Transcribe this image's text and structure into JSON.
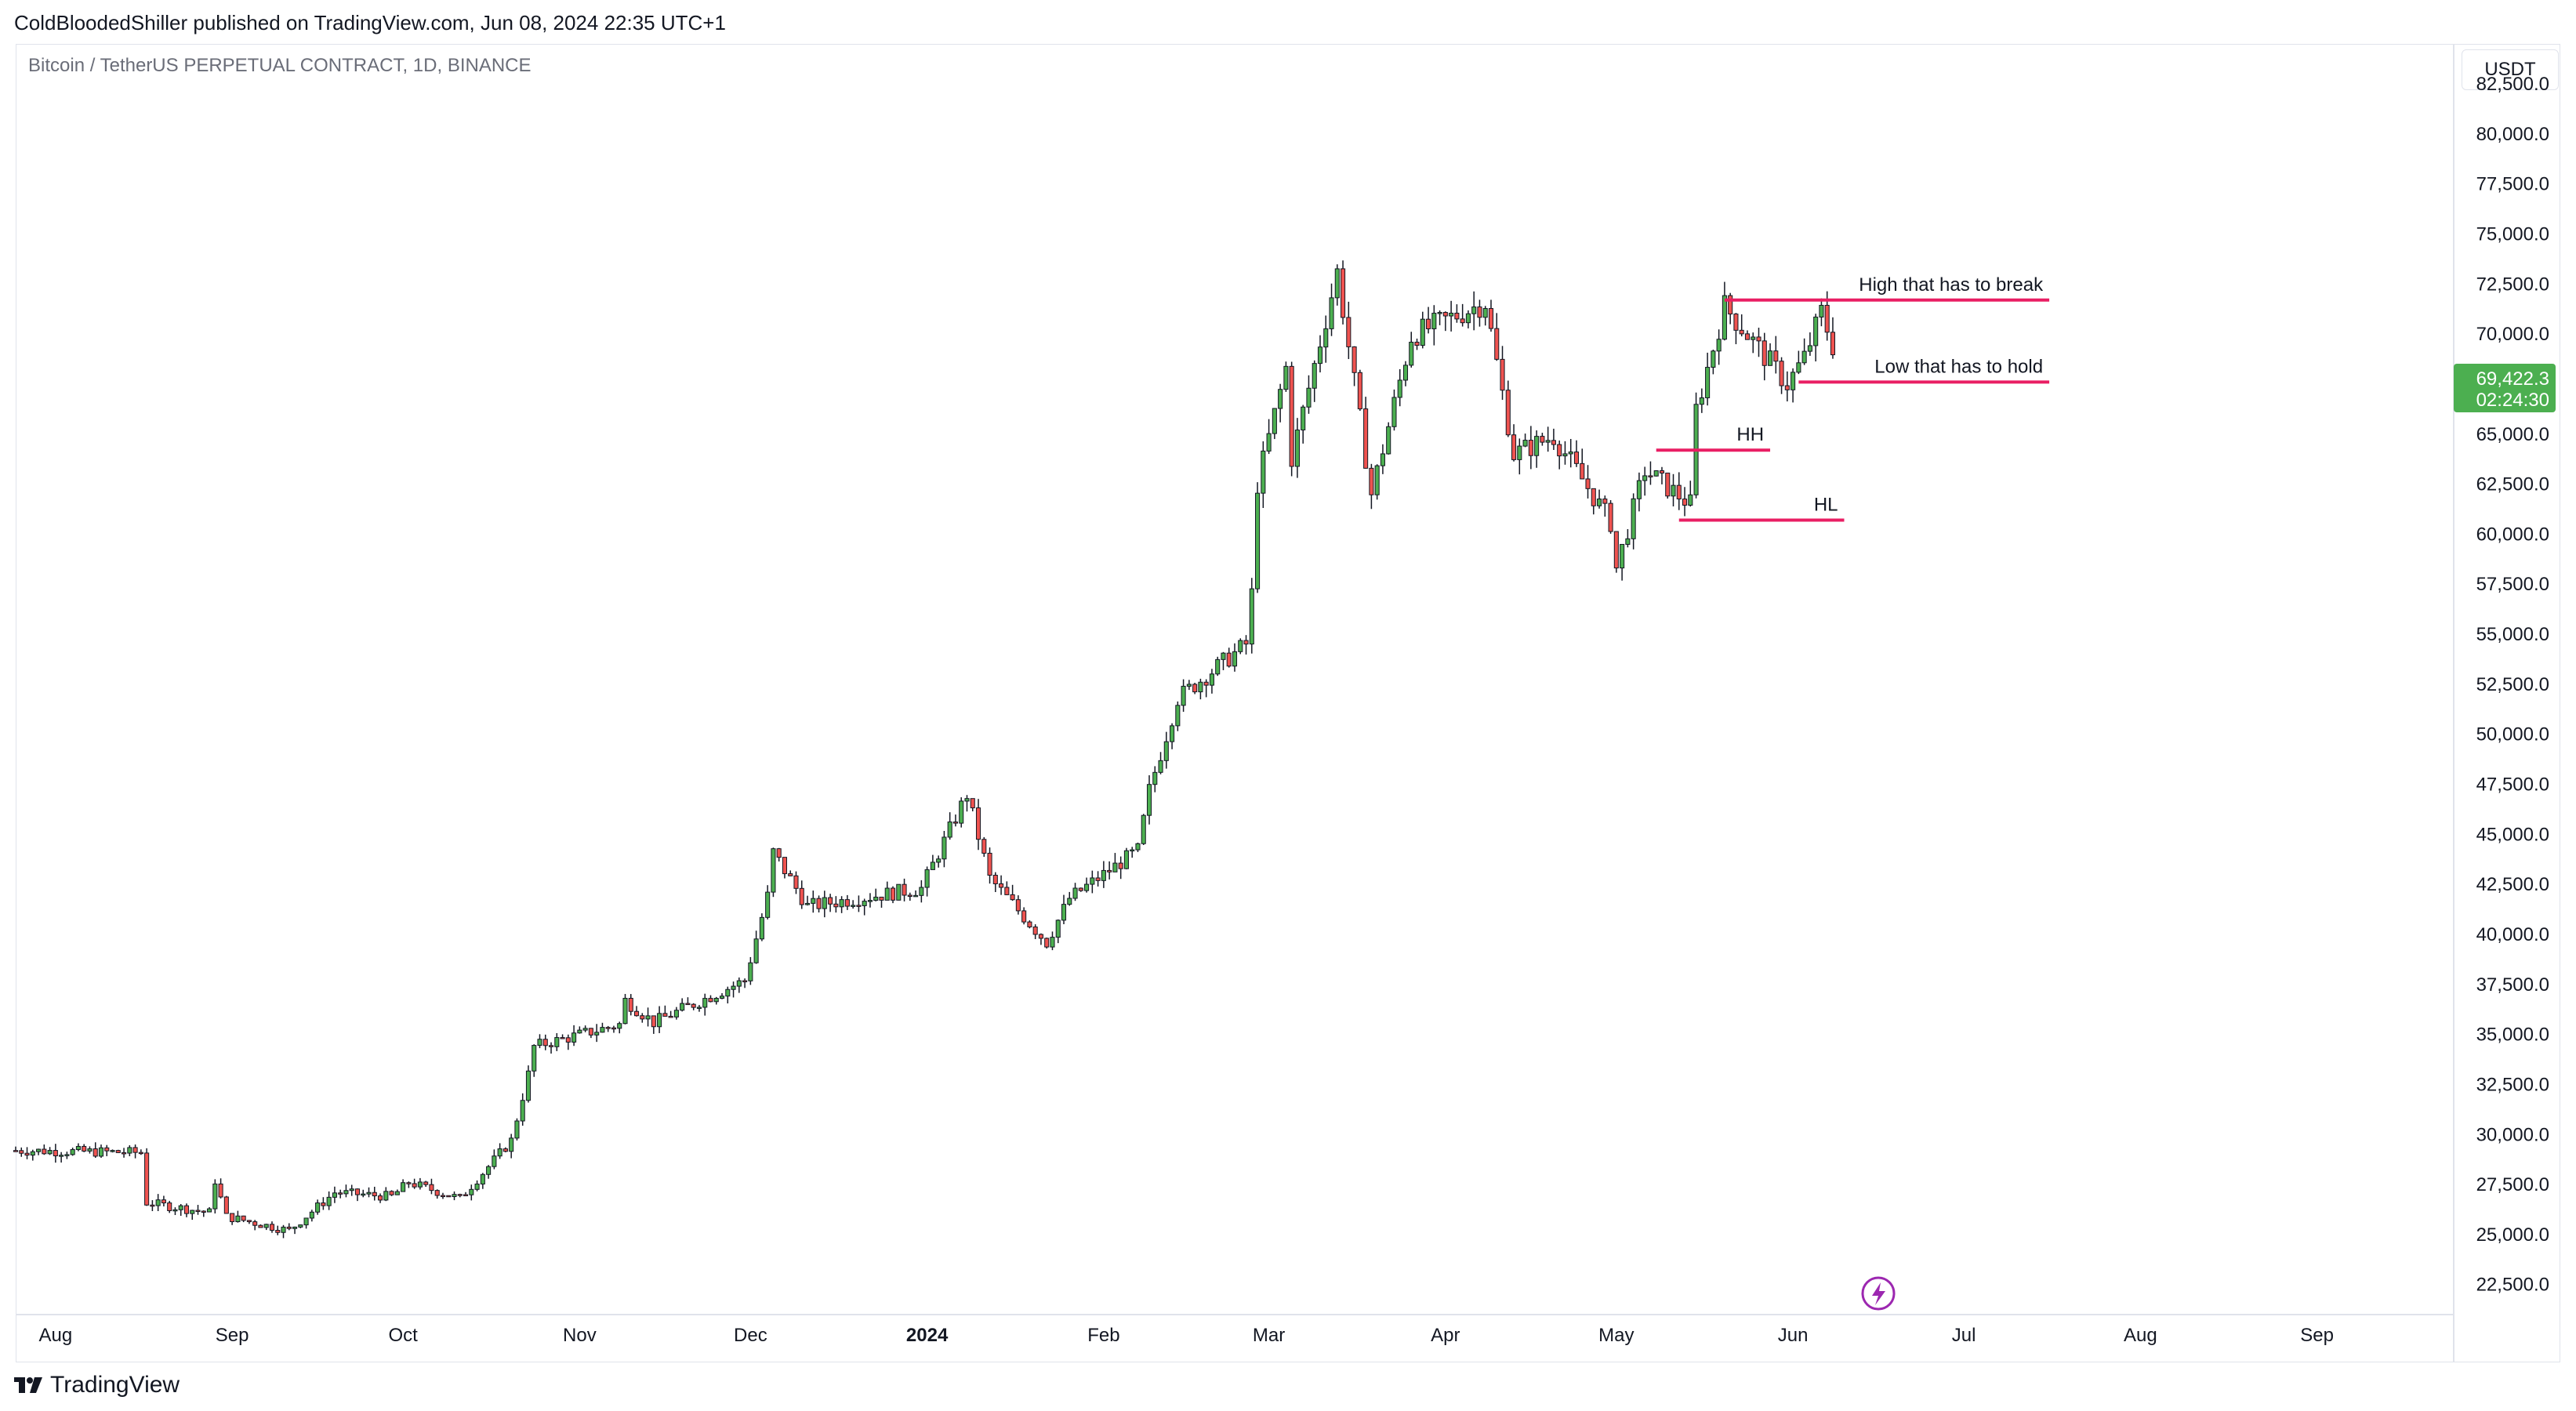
{
  "header": {
    "publisher_line": "ColdBloodedShiller published on TradingView.com, Jun 08, 2024 22:35 UTC+1"
  },
  "symbol": {
    "title": "Bitcoin / TetherUS PERPETUAL CONTRACT, 1D, BINANCE"
  },
  "currency": "USDT",
  "price_tag": {
    "price": "69,422.3",
    "countdown": "02:24:30",
    "color": "#4caf50"
  },
  "footer": {
    "brand": "TradingView"
  },
  "colors": {
    "up": "#4caf50",
    "down": "#ef5350",
    "annotation": "#e91e63",
    "grid_text": "#131722"
  },
  "chart_data": {
    "type": "candlestick",
    "title": "Bitcoin / TetherUS PERPETUAL CONTRACT, 1D, BINANCE",
    "ylabel": "USDT",
    "ylim": [
      21000,
      84500
    ],
    "xlim": [
      "2023-07-25",
      "2024-09-25"
    ],
    "y_ticks": [
      "82,500.0",
      "80,000.0",
      "77,500.0",
      "75,000.0",
      "72,500.0",
      "70,000.0",
      "67,500.0",
      "65,000.0",
      "62,500.0",
      "60,000.0",
      "57,500.0",
      "55,000.0",
      "52,500.0",
      "50,000.0",
      "47,500.0",
      "45,000.0",
      "42,500.0",
      "40,000.0",
      "37,500.0",
      "35,000.0",
      "32,500.0",
      "30,000.0",
      "27,500.0",
      "25,000.0",
      "22,500.0"
    ],
    "x_ticks": [
      {
        "date": "2023-08-01",
        "label": "Aug"
      },
      {
        "date": "2023-09-01",
        "label": "Sep"
      },
      {
        "date": "2023-10-01",
        "label": "Oct"
      },
      {
        "date": "2023-11-01",
        "label": "Nov"
      },
      {
        "date": "2023-12-01",
        "label": "Dec"
      },
      {
        "date": "2024-01-01",
        "label": "2024"
      },
      {
        "date": "2024-02-01",
        "label": "Feb"
      },
      {
        "date": "2024-03-01",
        "label": "Mar"
      },
      {
        "date": "2024-04-01",
        "label": "Apr"
      },
      {
        "date": "2024-05-01",
        "label": "May"
      },
      {
        "date": "2024-06-01",
        "label": "Jun"
      },
      {
        "date": "2024-07-01",
        "label": "Jul"
      },
      {
        "date": "2024-08-01",
        "label": "Aug"
      },
      {
        "date": "2024-09-01",
        "label": "Sep"
      }
    ],
    "close_path": [
      [
        "2023-07-25",
        29200
      ],
      [
        "2023-08-16",
        29100
      ],
      [
        "2023-08-17",
        26600
      ],
      [
        "2023-08-28",
        26100
      ],
      [
        "2023-08-29",
        27700
      ],
      [
        "2023-08-31",
        25900
      ],
      [
        "2023-09-11",
        25200
      ],
      [
        "2023-09-19",
        27100
      ],
      [
        "2023-09-29",
        26900
      ],
      [
        "2023-10-02",
        27600
      ],
      [
        "2023-10-11",
        26800
      ],
      [
        "2023-10-16",
        28400
      ],
      [
        "2023-10-20",
        29700
      ],
      [
        "2023-10-23",
        33000
      ],
      [
        "2023-10-24",
        34400
      ],
      [
        "2023-11-08",
        35500
      ],
      [
        "2023-11-09",
        36700
      ],
      [
        "2023-11-14",
        35600
      ],
      [
        "2023-11-30",
        37700
      ],
      [
        "2023-12-04",
        41900
      ],
      [
        "2023-12-05",
        44100
      ],
      [
        "2023-12-11",
        41400
      ],
      [
        "2023-12-31",
        42300
      ],
      [
        "2024-01-08",
        47000
      ],
      [
        "2024-01-12",
        42800
      ],
      [
        "2024-01-22",
        39600
      ],
      [
        "2024-01-26",
        41800
      ],
      [
        "2024-02-07",
        44200
      ],
      [
        "2024-02-09",
        47200
      ],
      [
        "2024-02-14",
        51800
      ],
      [
        "2024-02-26",
        54500
      ],
      [
        "2024-02-27",
        57000
      ],
      [
        "2024-02-28",
        62500
      ],
      [
        "2024-03-04",
        68300
      ],
      [
        "2024-03-05",
        63800
      ],
      [
        "2024-03-13",
        73100
      ],
      [
        "2024-03-19",
        62000
      ],
      [
        "2024-03-26",
        69900
      ],
      [
        "2024-04-08",
        71600
      ],
      [
        "2024-04-13",
        64000
      ],
      [
        "2024-04-20",
        64900
      ],
      [
        "2024-04-30",
        60600
      ],
      [
        "2024-05-01",
        58300
      ],
      [
        "2024-05-06",
        63200
      ],
      [
        "2024-05-14",
        61500
      ],
      [
        "2024-05-15",
        66200
      ],
      [
        "2024-05-20",
        71400
      ],
      [
        "2024-05-31",
        67500
      ],
      [
        "2024-06-03",
        68800
      ],
      [
        "2024-06-06",
        71100
      ],
      [
        "2024-06-08",
        69422
      ]
    ],
    "lines": [
      {
        "label": "High that has to break",
        "price": 71700,
        "from": "2024-05-20",
        "to": "2024-07-16"
      },
      {
        "label": "Low that has to hold",
        "price": 67600,
        "from": "2024-06-02",
        "to": "2024-07-16"
      },
      {
        "label": "HH",
        "price": 64200,
        "from": "2024-05-08",
        "to": "2024-05-28"
      },
      {
        "label": "HL",
        "price": 60700,
        "from": "2024-05-12",
        "to": "2024-06-10"
      }
    ]
  }
}
